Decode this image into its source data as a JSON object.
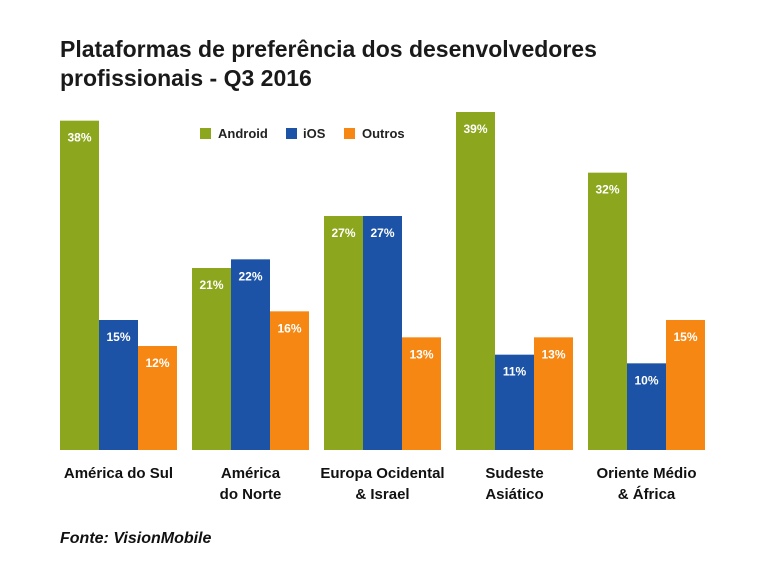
{
  "chart_data": {
    "type": "bar",
    "title_lines": [
      "Plataformas de preferência dos desenvolvedores",
      "profissionais - Q3 2016"
    ],
    "categories": [
      [
        "América do Sul"
      ],
      [
        "América",
        "do Norte"
      ],
      [
        "Europa Ocidental",
        "& Israel"
      ],
      [
        "Sudeste",
        "Asiático"
      ],
      [
        "Oriente Médio",
        "& África"
      ]
    ],
    "series": [
      {
        "name": "Android",
        "color": "#8ca61d",
        "values": [
          38,
          21,
          27,
          39,
          32
        ],
        "labels": [
          "38%",
          "21%",
          "27%",
          "39%",
          "32%"
        ]
      },
      {
        "name": "iOS",
        "color": "#1c53a6",
        "values": [
          15,
          22,
          27,
          11,
          10
        ],
        "labels": [
          "15%",
          "22%",
          "27%",
          "11%",
          "10%"
        ]
      },
      {
        "name": "Outros",
        "color": "#f68712",
        "values": [
          12,
          16,
          13,
          13,
          15
        ],
        "labels": [
          "12%",
          "16%",
          "13%",
          "13%",
          "15%"
        ]
      }
    ],
    "ylim": [
      0,
      39
    ],
    "legend_position": "top-center",
    "grid": false,
    "source": "Fonte: VisionMobile"
  }
}
